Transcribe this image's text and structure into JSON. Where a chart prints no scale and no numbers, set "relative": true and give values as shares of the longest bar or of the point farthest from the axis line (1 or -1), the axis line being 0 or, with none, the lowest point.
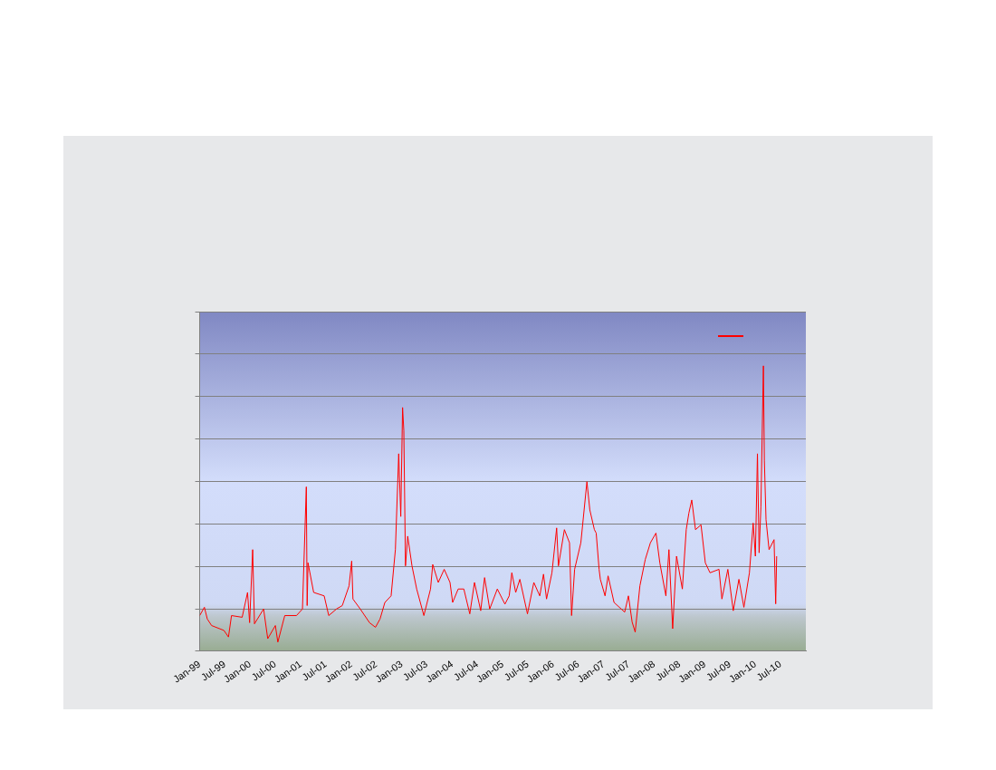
{
  "chart_data": {
    "type": "line",
    "relative": true,
    "grid": "y",
    "marker": "none",
    "line_style": "solid",
    "xlim": [
      "1999-01-01",
      "2011-01-01"
    ],
    "xticks": [
      {
        "value": "1999-01-01",
        "label": "Jan-99"
      },
      {
        "value": "1999-07-01",
        "label": "Jul-99"
      },
      {
        "value": "2000-01-01",
        "label": "Jan-00"
      },
      {
        "value": "2000-07-01",
        "label": "Jul-00"
      },
      {
        "value": "2001-01-01",
        "label": "Jan-01"
      },
      {
        "value": "2001-07-01",
        "label": "Jul-01"
      },
      {
        "value": "2002-01-01",
        "label": "Jan-02"
      },
      {
        "value": "2002-07-01",
        "label": "Jul-02"
      },
      {
        "value": "2003-01-01",
        "label": "Jan-03"
      },
      {
        "value": "2003-07-01",
        "label": "Jul-03"
      },
      {
        "value": "2004-01-01",
        "label": "Jan-04"
      },
      {
        "value": "2004-07-01",
        "label": "Jul-04"
      },
      {
        "value": "2005-01-01",
        "label": "Jan-05"
      },
      {
        "value": "2005-07-01",
        "label": "Jul-05"
      },
      {
        "value": "2006-01-01",
        "label": "Jan-06"
      },
      {
        "value": "2006-07-01",
        "label": "Jul-06"
      },
      {
        "value": "2007-01-01",
        "label": "Jan-07"
      },
      {
        "value": "2007-07-01",
        "label": "Jul-07"
      },
      {
        "value": "2008-01-01",
        "label": "Jan-08"
      },
      {
        "value": "2008-07-01",
        "label": "Jul-08"
      },
      {
        "value": "2009-01-01",
        "label": "Jan-09"
      },
      {
        "value": "2009-07-01",
        "label": "Jul-09"
      },
      {
        "value": "2010-01-01",
        "label": "Jan-10"
      },
      {
        "value": "2010-07-01",
        "label": "Jul-10"
      },
      {
        "value": "2011-01-01",
        "label": null
      }
    ],
    "x": [
      "1999-01-01",
      "1999-02-04",
      "1999-02-25",
      "1999-03-28",
      "1999-06-25",
      "1999-07-28",
      "1999-08-19",
      "1999-11-04",
      "1999-12-13",
      "1999-12-28",
      "2000-01-19",
      "2000-02-01",
      "2000-04-07",
      "2000-05-07",
      "2000-07-01",
      "2000-07-19",
      "2000-09-07",
      "2000-12-01",
      "2001-01-13",
      "2001-02-10",
      "2001-02-16",
      "2001-02-22",
      "2001-04-04",
      "2001-06-19",
      "2001-07-22",
      "2001-09-16",
      "2001-10-28",
      "2001-12-16",
      "2002-01-04",
      "2002-01-13",
      "2002-03-07",
      "2002-05-13",
      "2002-06-25",
      "2002-07-28",
      "2002-09-01",
      "2002-10-16",
      "2002-11-16",
      "2002-12-10",
      "2002-12-25",
      "2003-01-07",
      "2003-01-16",
      "2003-01-28",
      "2003-02-13",
      "2003-03-16",
      "2003-04-19",
      "2003-06-10",
      "2003-07-28",
      "2003-08-13",
      "2003-09-22",
      "2003-11-04",
      "2003-12-16",
      "2004-01-04",
      "2004-02-13",
      "2004-03-25",
      "2004-05-07",
      "2004-06-10",
      "2004-07-25",
      "2004-08-22",
      "2004-09-28",
      "2004-11-22",
      "2005-01-16",
      "2005-02-16",
      "2005-03-07",
      "2005-04-04",
      "2005-05-04",
      "2005-06-28",
      "2005-08-13",
      "2005-09-25",
      "2005-10-22",
      "2005-11-13",
      "2005-12-22",
      "2006-01-25",
      "2006-02-07",
      "2006-03-22",
      "2006-04-28",
      "2006-05-13",
      "2006-06-04",
      "2006-07-19",
      "2006-09-01",
      "2006-09-22",
      "2006-10-25",
      "2006-11-07",
      "2006-11-28",
      "2006-12-07",
      "2007-01-10",
      "2007-02-01",
      "2007-03-16",
      "2007-06-01",
      "2007-06-28",
      "2007-07-25",
      "2007-08-16",
      "2007-09-19",
      "2007-10-28",
      "2007-12-04",
      "2008-01-13",
      "2008-02-10",
      "2008-03-25",
      "2008-04-16",
      "2008-05-13",
      "2008-06-10",
      "2008-07-22",
      "2008-08-19",
      "2008-09-07",
      "2008-09-28",
      "2008-10-25",
      "2008-12-04",
      "2009-01-04",
      "2009-02-07",
      "2009-04-13",
      "2009-05-04",
      "2009-06-16",
      "2009-07-25",
      "2009-09-04",
      "2009-10-10",
      "2009-11-19",
      "2009-12-16",
      "2010-01-01",
      "2010-01-16",
      "2010-01-28",
      "2010-02-10",
      "2010-02-28",
      "2010-03-07",
      "2010-03-19",
      "2010-04-10",
      "2010-05-16",
      "2010-05-28",
      "2010-06-04"
    ],
    "series": [
      {
        "color": "#ff0000",
        "values": [
          0.125,
          0.154,
          0.113,
          0.09,
          0.073,
          0.05,
          0.125,
          0.119,
          0.206,
          0.1,
          0.356,
          0.096,
          0.148,
          0.044,
          0.09,
          0.032,
          0.125,
          0.125,
          0.148,
          0.576,
          0.16,
          0.31,
          0.206,
          0.194,
          0.125,
          0.148,
          0.16,
          0.229,
          0.316,
          0.183,
          0.148,
          0.1,
          0.084,
          0.113,
          0.171,
          0.194,
          0.356,
          0.692,
          0.472,
          0.854,
          0.773,
          0.299,
          0.403,
          0.299,
          0.218,
          0.125,
          0.218,
          0.304,
          0.241,
          0.287,
          0.241,
          0.171,
          0.218,
          0.218,
          0.131,
          0.241,
          0.142,
          0.258,
          0.148,
          0.218,
          0.165,
          0.194,
          0.275,
          0.206,
          0.252,
          0.131,
          0.241,
          0.194,
          0.27,
          0.183,
          0.275,
          0.432,
          0.299,
          0.426,
          0.38,
          0.125,
          0.287,
          0.38,
          0.594,
          0.495,
          0.426,
          0.414,
          0.287,
          0.252,
          0.194,
          0.264,
          0.171,
          0.137,
          0.194,
          0.102,
          0.067,
          0.229,
          0.322,
          0.38,
          0.414,
          0.31,
          0.194,
          0.356,
          0.079,
          0.333,
          0.218,
          0.426,
          0.484,
          0.53,
          0.426,
          0.443,
          0.31,
          0.275,
          0.287,
          0.183,
          0.287,
          0.142,
          0.252,
          0.154,
          0.275,
          0.449,
          0.333,
          0.692,
          0.345,
          0.507,
          1,
          0.669,
          0.461,
          0.356,
          0.391,
          0.166,
          0.333
        ]
      }
    ]
  }
}
